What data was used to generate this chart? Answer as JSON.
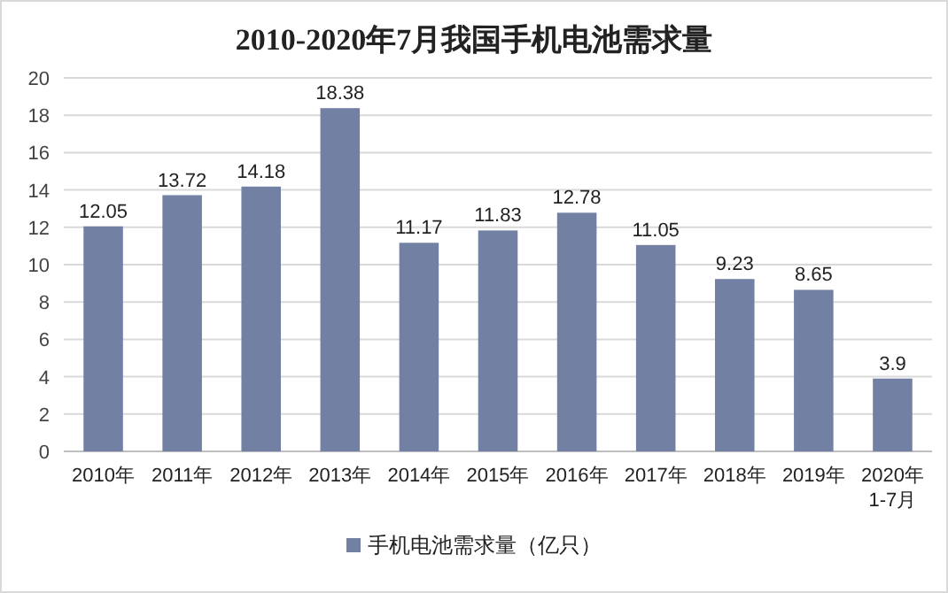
{
  "chart_data": {
    "type": "bar",
    "title": "2010-2020年7月我国手机电池需求量",
    "categories": [
      "2010年",
      "2011年",
      "2012年",
      "2013年",
      "2014年",
      "2015年",
      "2016年",
      "2017年",
      "2018年",
      "2019年",
      "2020年1-7月"
    ],
    "series": [
      {
        "name": "手机电池需求量（亿只）",
        "color": "#7280a4",
        "values": [
          12.05,
          13.72,
          14.18,
          18.38,
          11.17,
          11.83,
          12.78,
          11.05,
          9.23,
          8.65,
          3.9
        ]
      }
    ],
    "ylim": [
      0,
      20
    ],
    "yticks": [
      0,
      2,
      4,
      6,
      8,
      10,
      12,
      14,
      16,
      18,
      20
    ],
    "grid": "y",
    "legend": "bottom",
    "data_labels": true
  }
}
